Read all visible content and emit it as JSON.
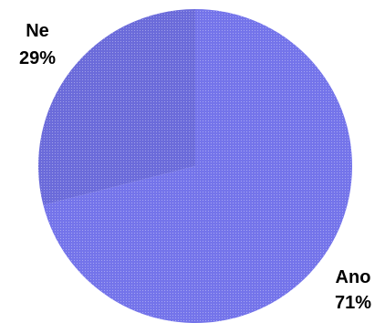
{
  "chart_data": {
    "type": "pie",
    "title": "",
    "start_angle_deg": 0,
    "direction": "clockwise",
    "slices": [
      {
        "label": "Ano",
        "value": 71,
        "value_label": "71%",
        "color": "#7474ea"
      },
      {
        "label": "Ne",
        "value": 29,
        "value_label": "29%",
        "color": "#6b6bda"
      }
    ]
  }
}
